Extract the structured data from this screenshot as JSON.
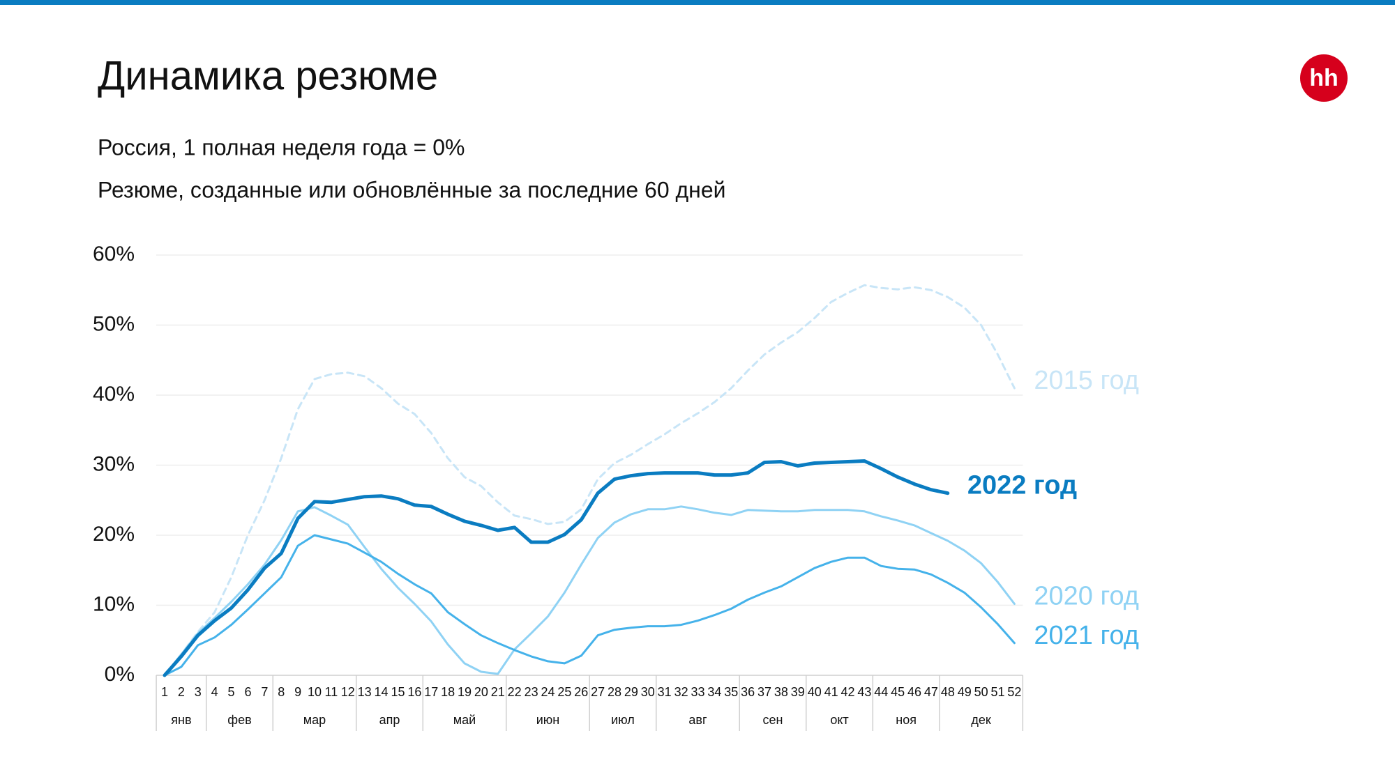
{
  "title": "Динамика резюме",
  "logo": "hh",
  "chart_data": {
    "type": "line",
    "subtitle": "Россия, 1 полная неделя года = 0%",
    "description": "Резюме, созданные или обновлённые за последние 60 дней",
    "months": [
      {
        "label": "янв",
        "weeks": [
          1,
          2,
          3
        ]
      },
      {
        "label": "фев",
        "weeks": [
          4,
          5,
          6,
          7
        ]
      },
      {
        "label": "мар",
        "weeks": [
          8,
          9,
          10,
          11,
          12
        ]
      },
      {
        "label": "апр",
        "weeks": [
          13,
          14,
          15,
          16
        ]
      },
      {
        "label": "май",
        "weeks": [
          17,
          18,
          19,
          20,
          21
        ]
      },
      {
        "label": "июн",
        "weeks": [
          22,
          23,
          24,
          25,
          26
        ]
      },
      {
        "label": "июл",
        "weeks": [
          27,
          28,
          29,
          30
        ]
      },
      {
        "label": "авг",
        "weeks": [
          31,
          32,
          33,
          34,
          35
        ]
      },
      {
        "label": "сен",
        "weeks": [
          36,
          37,
          38,
          39
        ]
      },
      {
        "label": "окт",
        "weeks": [
          40,
          41,
          42,
          43
        ]
      },
      {
        "label": "ноя",
        "weeks": [
          44,
          45,
          46,
          47
        ]
      },
      {
        "label": "дек",
        "weeks": [
          48,
          49,
          50,
          51,
          52
        ]
      }
    ],
    "ylim": [
      0,
      60
    ],
    "yticks": [
      {
        "value": 0,
        "label": "0%"
      },
      {
        "value": 10,
        "label": "10%"
      },
      {
        "value": 20,
        "label": "20%"
      },
      {
        "value": 30,
        "label": "30%"
      },
      {
        "value": 40,
        "label": "40%"
      },
      {
        "value": 50,
        "label": "50%"
      },
      {
        "value": 60,
        "label": "60%"
      }
    ],
    "grid": true,
    "series": [
      {
        "name": "2015 год",
        "color": "#c8e5f7",
        "dashed": true,
        "values": [
          0,
          3,
          6.2,
          9,
          14,
          20,
          25,
          31,
          38,
          42.3,
          43,
          43.2,
          42.7,
          41,
          38.8,
          37.3,
          34.6,
          31,
          28.3,
          27,
          24.7,
          22.8,
          22.3,
          21.6,
          21.9,
          23.7,
          28,
          30.3,
          31.5,
          33,
          34.4,
          36,
          37.4,
          39,
          41,
          43.5,
          45.8,
          47.5,
          49,
          51,
          53.3,
          54.6,
          55.7,
          55.3,
          55.1,
          55.4,
          55,
          54,
          52.5,
          50,
          45.8,
          41
        ]
      },
      {
        "name": "2020 год",
        "color": "#8fd2f4",
        "dashed": false,
        "values": [
          0,
          3,
          6,
          8.2,
          10.5,
          13,
          15.8,
          19.3,
          23.4,
          24,
          22.8,
          21.5,
          18.3,
          15.2,
          12.5,
          10.2,
          7.7,
          4.4,
          1.7,
          0.5,
          0.2,
          3.7,
          6,
          8.4,
          11.8,
          15.8,
          19.6,
          21.8,
          23,
          23.7,
          23.7,
          24.1,
          23.7,
          23.2,
          22.9,
          23.6,
          23.5,
          23.4,
          23.4,
          23.6,
          23.6,
          23.6,
          23.4,
          22.7,
          22.1,
          21.4,
          20.3,
          19.2,
          17.8,
          16,
          13.3,
          10.2
        ]
      },
      {
        "name": "2021 год",
        "color": "#45b2ea",
        "dashed": false,
        "values": [
          0,
          1.2,
          4.3,
          5.4,
          7.2,
          9.4,
          11.7,
          14,
          18.5,
          20,
          19.4,
          18.8,
          17.5,
          16.2,
          14.5,
          13,
          11.7,
          9,
          7.3,
          5.7,
          4.6,
          3.6,
          2.7,
          2,
          1.7,
          2.8,
          5.7,
          6.5,
          6.8,
          7,
          7,
          7.2,
          7.8,
          8.6,
          9.5,
          10.8,
          11.8,
          12.7,
          14,
          15.3,
          16.2,
          16.8,
          16.8,
          15.6,
          15.2,
          15.1,
          14.4,
          13.2,
          11.8,
          9.7,
          7.3,
          4.6
        ]
      },
      {
        "name": "2022 год",
        "color": "#0a7cc1",
        "dashed": false,
        "bold": true,
        "values": [
          0,
          2.7,
          5.7,
          7.8,
          9.6,
          12.2,
          15.3,
          17.4,
          22.4,
          24.8,
          24.7,
          25.1,
          25.5,
          25.6,
          25.2,
          24.3,
          24.1,
          23,
          22,
          21.4,
          20.7,
          21.1,
          19,
          19,
          20.1,
          22.2,
          26,
          28,
          28.5,
          28.8,
          28.9,
          28.9,
          28.9,
          28.6,
          28.6,
          28.9,
          30.4,
          30.5,
          29.9,
          30.3,
          30.4,
          30.5,
          30.6,
          29.5,
          28.3,
          27.3,
          26.5,
          26,
          null,
          null,
          null,
          null
        ]
      }
    ]
  }
}
